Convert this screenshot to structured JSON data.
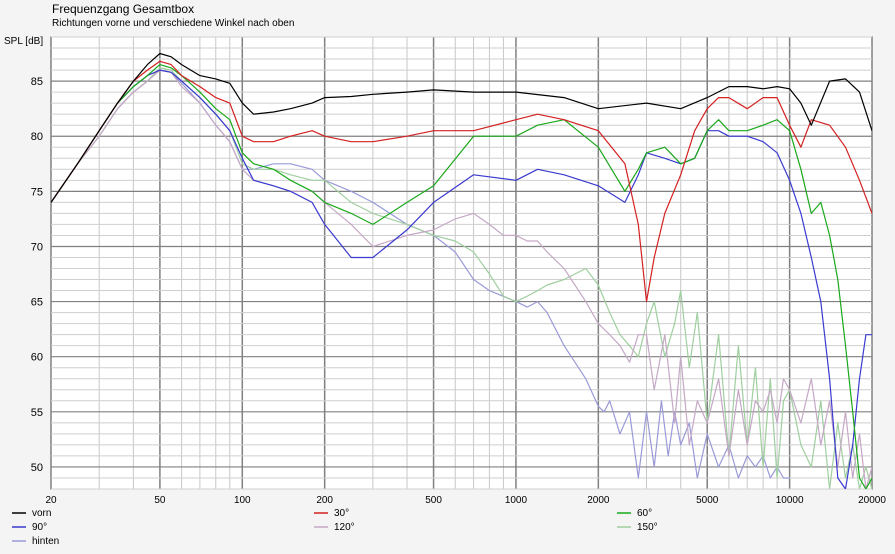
{
  "chart_data": {
    "type": "line",
    "title": "Frequenzgang Gesamtbox",
    "subtitle": "Richtungen vorne und verschiedene Winkel nach oben",
    "ylabel": "SPL [dB]",
    "xlabel": "",
    "x_scale": "log",
    "xlim": [
      20,
      20000
    ],
    "ylim": [
      48,
      89
    ],
    "grid": true,
    "legend_placement": "bottom",
    "x_ticks": [
      "20",
      "50",
      "100",
      "200",
      "500",
      "1000",
      "2000",
      "5000",
      "10000",
      "20000"
    ],
    "y_ticks": [
      "50",
      "55",
      "60",
      "65",
      "70",
      "75",
      "80",
      "85"
    ],
    "series": [
      {
        "name": "vorn",
        "color": "#000000",
        "x": [
          20,
          25,
          30,
          35,
          40,
          45,
          50,
          55,
          60,
          70,
          80,
          90,
          100,
          110,
          130,
          150,
          180,
          200,
          250,
          300,
          400,
          500,
          700,
          1000,
          1500,
          2000,
          3000,
          4000,
          5000,
          6000,
          7000,
          8000,
          9000,
          10000,
          11000,
          12000,
          14000,
          16000,
          18000,
          20000
        ],
        "y": [
          74,
          77.5,
          80.5,
          83,
          85,
          86.5,
          87.5,
          87.2,
          86.5,
          85.5,
          85.2,
          84.8,
          83,
          82,
          82.2,
          82.5,
          83,
          83.5,
          83.6,
          83.8,
          84,
          84.2,
          84,
          84,
          83.5,
          82.5,
          83,
          82.5,
          83.5,
          84.5,
          84.5,
          84.3,
          84.5,
          84.3,
          83,
          81,
          85,
          85.2,
          84,
          80.5
        ]
      },
      {
        "name": "30°",
        "color": "#d42020",
        "x": [
          20,
          25,
          30,
          35,
          40,
          45,
          50,
          55,
          60,
          70,
          80,
          90,
          100,
          110,
          130,
          150,
          180,
          200,
          250,
          300,
          400,
          500,
          700,
          1000,
          1200,
          1500,
          2000,
          2500,
          2800,
          3000,
          3200,
          3500,
          4000,
          4500,
          5000,
          5500,
          6000,
          7000,
          8000,
          9000,
          10000,
          11000,
          12000,
          14000,
          16000,
          18000,
          20000
        ],
        "y": [
          74,
          77.5,
          80.5,
          83,
          85,
          86,
          86.8,
          86.5,
          85.5,
          84.5,
          83.5,
          83,
          80,
          79.5,
          79.5,
          80,
          80.5,
          80,
          79.5,
          79.5,
          80,
          80.5,
          80.5,
          81.5,
          82,
          81.5,
          80.5,
          77.5,
          72,
          65,
          69,
          73,
          76.5,
          80.5,
          82.5,
          83.5,
          83.5,
          82.5,
          83.5,
          83.5,
          81,
          79,
          81.5,
          81,
          79,
          76,
          73
        ]
      },
      {
        "name": "60°",
        "color": "#1aa81a",
        "x": [
          20,
          25,
          30,
          35,
          40,
          45,
          50,
          55,
          60,
          70,
          80,
          90,
          100,
          110,
          130,
          150,
          180,
          200,
          250,
          300,
          400,
          500,
          700,
          1000,
          1200,
          1500,
          2000,
          2500,
          2800,
          3000,
          3500,
          4000,
          4500,
          5000,
          5500,
          6000,
          7000,
          8000,
          9000,
          10000,
          11000,
          12000,
          13000,
          14000,
          15000,
          16000,
          17000,
          18000,
          19000,
          20000
        ],
        "y": [
          74,
          77.5,
          80.5,
          83,
          84.5,
          85.5,
          86.5,
          86.2,
          85.5,
          84,
          82.5,
          81.5,
          78.5,
          77.5,
          77,
          76,
          75,
          74,
          73,
          72,
          74,
          75.5,
          80,
          80,
          81,
          81.5,
          79,
          75,
          77,
          78.5,
          79,
          77.5,
          78,
          80.5,
          81.5,
          80.5,
          80.5,
          81,
          81.5,
          80.5,
          77,
          73,
          74,
          71,
          67,
          61,
          55,
          49,
          48,
          49
        ]
      },
      {
        "name": "90°",
        "color": "#3a3ad0",
        "x": [
          20,
          25,
          30,
          35,
          40,
          45,
          50,
          55,
          60,
          70,
          80,
          90,
          100,
          110,
          130,
          150,
          180,
          200,
          250,
          300,
          400,
          500,
          700,
          1000,
          1200,
          1500,
          2000,
          2500,
          2800,
          3000,
          3500,
          4000,
          4500,
          5000,
          5500,
          6000,
          7000,
          8000,
          9000,
          10000,
          11000,
          12000,
          13000,
          14000,
          15000,
          16000,
          17000,
          18000,
          19000,
          20000
        ],
        "y": [
          74,
          77.5,
          80.5,
          83,
          84.5,
          85.5,
          86,
          85.8,
          85,
          83.5,
          82,
          80.5,
          78,
          76,
          75.5,
          75,
          74,
          72,
          69,
          69,
          71.5,
          74,
          76.5,
          76,
          77,
          76.5,
          75.5,
          74,
          76.5,
          78.5,
          78,
          77.5,
          78,
          80.5,
          80.5,
          80,
          80,
          79.5,
          78.5,
          76,
          73,
          69,
          65,
          58,
          49,
          48,
          52,
          58,
          62,
          62
        ]
      },
      {
        "name": "120°",
        "color": "#c5a8c5",
        "x": [
          20,
          25,
          30,
          35,
          40,
          45,
          50,
          55,
          60,
          70,
          80,
          90,
          100,
          110,
          130,
          150,
          180,
          200,
          250,
          300,
          400,
          500,
          600,
          700,
          800,
          900,
          1000,
          1100,
          1200,
          1300,
          1500,
          1800,
          2000,
          2200,
          2400,
          2600,
          2800,
          3000,
          3200,
          3500,
          3800,
          4000,
          4300,
          4600,
          5000,
          5500,
          6000,
          6500,
          7000,
          7500,
          8000,
          8500,
          9000,
          9500,
          10000,
          11000,
          12000,
          13000,
          14000,
          15000,
          16000,
          17000,
          18000,
          19000,
          20000
        ],
        "y": [
          74,
          77.5,
          80,
          82.5,
          84,
          85,
          86,
          85.8,
          84.5,
          83,
          81,
          79.5,
          77,
          76,
          75.5,
          75,
          75,
          74,
          72,
          70,
          71,
          71.5,
          72.5,
          73,
          72,
          71,
          71,
          70.5,
          70.5,
          69.5,
          68,
          65,
          63,
          62,
          61,
          59.5,
          62,
          62,
          57,
          62,
          54,
          60,
          52,
          56,
          54,
          58,
          51,
          57,
          52,
          56,
          55,
          57,
          54,
          58,
          57,
          54,
          58,
          52,
          56,
          50,
          55,
          49,
          53,
          48,
          50
        ]
      },
      {
        "name": "150°",
        "color": "#9fcf9f",
        "x": [
          20,
          25,
          30,
          35,
          40,
          45,
          50,
          55,
          60,
          70,
          80,
          90,
          100,
          110,
          130,
          150,
          180,
          200,
          250,
          300,
          400,
          500,
          600,
          700,
          800,
          900,
          1000,
          1100,
          1200,
          1300,
          1500,
          1800,
          2000,
          2200,
          2400,
          2600,
          2800,
          3000,
          3200,
          3500,
          3800,
          4000,
          4300,
          4600,
          5000,
          5500,
          6000,
          6500,
          7000,
          7500,
          8000,
          8500,
          9000,
          9500,
          10000,
          11000,
          12000,
          13000,
          14000,
          15000,
          16000,
          17000,
          18000,
          19000,
          20000
        ],
        "y": [
          74,
          77.5,
          80,
          82.5,
          84,
          85,
          86.2,
          86,
          85,
          83.5,
          82,
          80.5,
          77.5,
          77,
          77,
          76.5,
          76,
          76,
          74,
          73,
          72,
          71,
          70.5,
          69.5,
          67.5,
          65.5,
          65,
          65.5,
          66,
          66.5,
          67,
          68,
          66.5,
          64,
          62,
          61,
          60,
          63,
          65,
          60,
          63,
          66,
          59,
          64,
          54,
          62,
          51,
          61,
          52,
          59,
          50,
          58,
          49,
          56,
          57,
          52,
          50,
          56,
          48,
          54,
          49,
          52,
          48,
          50,
          48
        ]
      },
      {
        "name": "hinten",
        "color": "#9a9ad8",
        "x": [
          20,
          25,
          30,
          35,
          40,
          45,
          50,
          55,
          60,
          70,
          80,
          90,
          100,
          110,
          130,
          150,
          180,
          200,
          250,
          300,
          400,
          500,
          600,
          700,
          800,
          1000,
          1100,
          1200,
          1300,
          1500,
          1800,
          2000,
          2100,
          2200,
          2400,
          2600,
          2800,
          3000,
          3200,
          3400,
          3600,
          3800,
          4000,
          4300,
          4600,
          5000,
          5500,
          6000,
          6500,
          7000,
          7500,
          8000,
          8500,
          9000,
          9500,
          10000
        ],
        "y": [
          74,
          77.5,
          80,
          82.5,
          84,
          85,
          86,
          85.8,
          84.8,
          83,
          81,
          79.5,
          77,
          77,
          77.5,
          77.5,
          77,
          76,
          75,
          74,
          72,
          71,
          69.5,
          67,
          66,
          65,
          64.5,
          65,
          64,
          61,
          58,
          55.5,
          55,
          56,
          53,
          55,
          49,
          55,
          50,
          56,
          51,
          55,
          52,
          54,
          49,
          53,
          50,
          52,
          49,
          51,
          50,
          51,
          49,
          50,
          49,
          49
        ]
      }
    ]
  }
}
